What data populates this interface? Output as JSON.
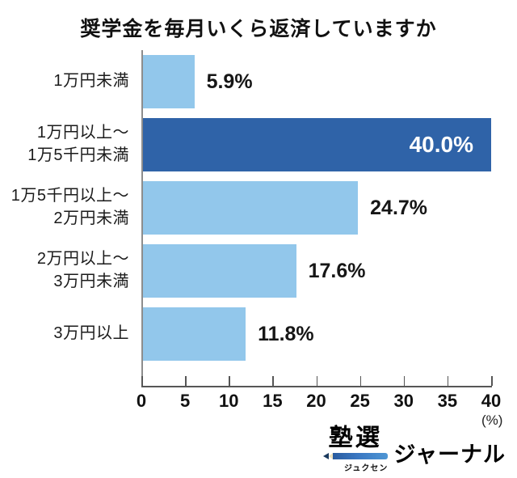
{
  "title": "奨学金を毎月いくら返済していますか",
  "chart_data": {
    "type": "bar",
    "orientation": "horizontal",
    "title": "奨学金を毎月いくら返済していますか",
    "categories": [
      "1万円未満",
      "1万円以上〜1万5千円未満",
      "1万5千円以上〜2万円未満",
      "2万円以上〜3万円未満",
      "3万円以上"
    ],
    "values": [
      5.9,
      40.0,
      24.7,
      17.6,
      11.8
    ],
    "value_labels": [
      "5.9%",
      "40.0%",
      "24.7%",
      "17.6%",
      "11.8%"
    ],
    "highlight_index": 1,
    "xlabel": "(%)",
    "xlim": [
      0,
      40
    ],
    "x_ticks": [
      0,
      5,
      10,
      15,
      20,
      25,
      30,
      35,
      40
    ],
    "grid": false,
    "legend": "none",
    "bar_color": "#92c7eb",
    "highlight_color": "#2f63a8",
    "value_label_color": "#161616",
    "highlight_value_label_color": "#ffffff"
  },
  "cat_lines": [
    [
      "1万円未満"
    ],
    [
      "1万円以上〜",
      "1万5千円未満"
    ],
    [
      "1万5千円以上〜",
      "2万円未満"
    ],
    [
      "2万円以上〜",
      "3万円未満"
    ],
    [
      "3万円以上"
    ]
  ],
  "axis": {
    "ticks": [
      "0",
      "5",
      "10",
      "15",
      "20",
      "25",
      "30",
      "35",
      "40"
    ],
    "unit": "(%)"
  },
  "logo": {
    "brand": "塾選",
    "furigana": "ジュクセン",
    "suffix": "ジャーナル"
  }
}
